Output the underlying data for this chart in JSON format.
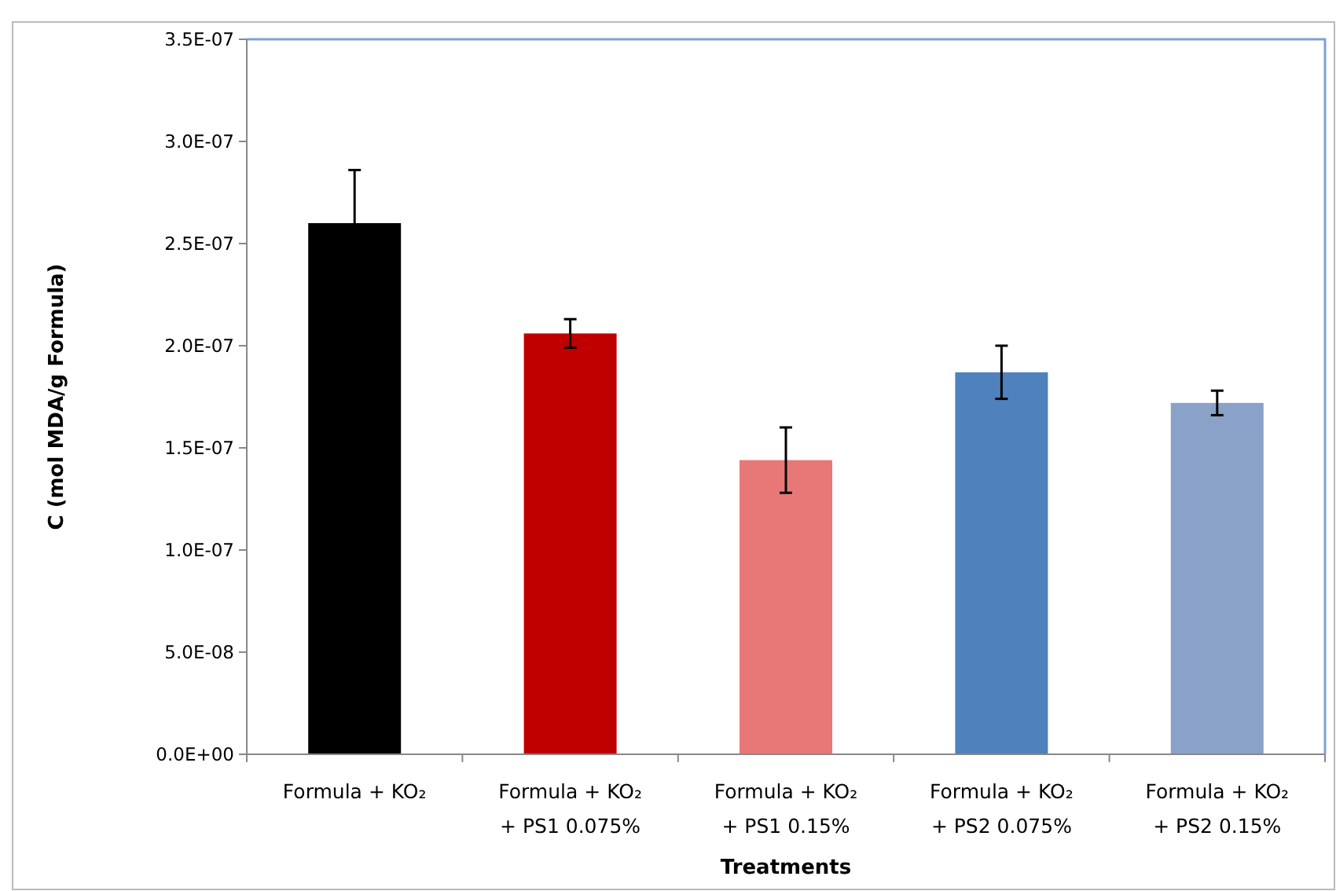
{
  "chart_data": {
    "type": "bar",
    "xlabel": "Treatments",
    "ylabel": "C (mol MDA/g Formula)",
    "categories": [
      "Formula + KO₂",
      "Formula + KO₂\n+ PS1 0.075%",
      "Formula + KO₂\n+ PS1 0.15%",
      "Formula + KO₂\n+ PS2 0.075%",
      "Formula + KO₂\n+ PS2 0.15%"
    ],
    "values": [
      2.6e-07,
      2.06e-07,
      1.44e-07,
      1.87e-07,
      1.72e-07
    ],
    "errors": [
      2.6e-08,
      7e-09,
      1.6e-08,
      1.3e-08,
      6e-09
    ],
    "colors": [
      "#000000",
      "#c00000",
      "#e87878",
      "#4f81bd",
      "#8aa2c8"
    ],
    "ylim": [
      0,
      3.5e-07
    ],
    "yticks": [
      {
        "value": 0,
        "label": "0.0E+00"
      },
      {
        "value": 5e-08,
        "label": "5.0E-08"
      },
      {
        "value": 1e-07,
        "label": "1.0E-07"
      },
      {
        "value": 1.5e-07,
        "label": "1.5E-07"
      },
      {
        "value": 2e-07,
        "label": "2.0E-07"
      },
      {
        "value": 2.5e-07,
        "label": "2.5E-07"
      },
      {
        "value": 3e-07,
        "label": "3.0E-07"
      },
      {
        "value": 3.5e-07,
        "label": "3.5E-07"
      }
    ]
  }
}
